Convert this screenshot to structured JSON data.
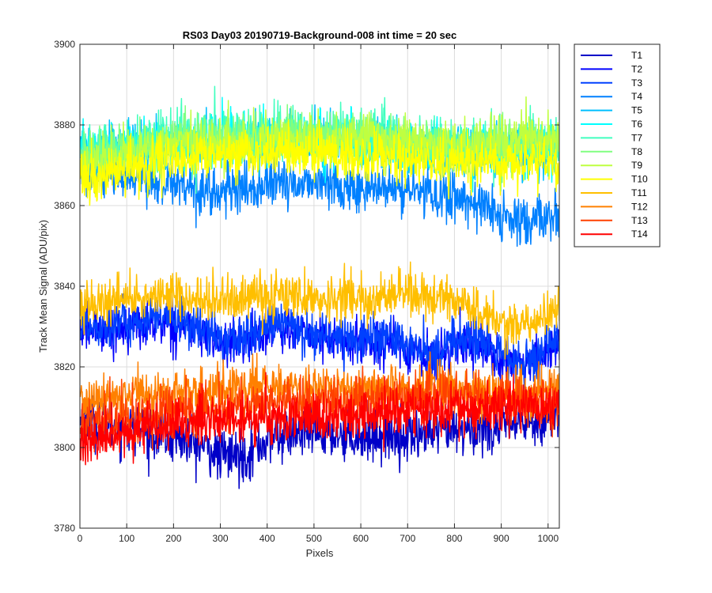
{
  "chart_data": {
    "type": "line",
    "title": "RS03 Day03 20190719-Background-008 int time = 20 sec",
    "xlabel": "Pixels",
    "ylabel": "Track Mean Signal (ADU/pix)",
    "xlim": [
      0,
      1024
    ],
    "ylim": [
      3780,
      3900
    ],
    "xticks": [
      0,
      100,
      200,
      300,
      400,
      500,
      600,
      700,
      800,
      900,
      1000
    ],
    "yticks": [
      3780,
      3800,
      3820,
      3840,
      3860,
      3880,
      3900
    ],
    "grid": true,
    "legend_location": "outside-right-top",
    "x_range": [
      1,
      1024
    ],
    "series": [
      {
        "name": "T1",
        "color": "#0000c8",
        "knots": [
          [
            0,
            3807
          ],
          [
            150,
            3804
          ],
          [
            250,
            3801
          ],
          [
            300,
            3798
          ],
          [
            350,
            3798
          ],
          [
            420,
            3803
          ],
          [
            500,
            3804
          ],
          [
            600,
            3803
          ],
          [
            700,
            3803
          ],
          [
            800,
            3804
          ],
          [
            900,
            3805
          ],
          [
            1024,
            3808
          ]
        ],
        "noise_sd": 3.2
      },
      {
        "name": "T2",
        "color": "#0000ff",
        "knots": [
          [
            0,
            3829
          ],
          [
            100,
            3830
          ],
          [
            200,
            3831
          ],
          [
            250,
            3829
          ],
          [
            300,
            3826
          ],
          [
            350,
            3826
          ],
          [
            420,
            3830
          ],
          [
            500,
            3827
          ],
          [
            600,
            3826
          ],
          [
            650,
            3827
          ],
          [
            700,
            3824
          ],
          [
            760,
            3822
          ],
          [
            800,
            3826
          ],
          [
            850,
            3826
          ],
          [
            900,
            3822
          ],
          [
            950,
            3819
          ],
          [
            1024,
            3826
          ]
        ],
        "noise_sd": 2.8
      },
      {
        "name": "T3",
        "color": "#0040ff",
        "knots": [
          [
            0,
            3830
          ],
          [
            100,
            3831
          ],
          [
            200,
            3832
          ],
          [
            250,
            3830
          ],
          [
            300,
            3827
          ],
          [
            350,
            3827
          ],
          [
            420,
            3831
          ],
          [
            500,
            3828
          ],
          [
            600,
            3827
          ],
          [
            650,
            3828
          ],
          [
            700,
            3825
          ],
          [
            760,
            3823
          ],
          [
            800,
            3827
          ],
          [
            850,
            3827
          ],
          [
            900,
            3823
          ],
          [
            950,
            3820
          ],
          [
            1024,
            3827
          ]
        ],
        "noise_sd": 2.8
      },
      {
        "name": "T4",
        "color": "#0080ff",
        "knots": [
          [
            0,
            3868
          ],
          [
            100,
            3866
          ],
          [
            200,
            3866
          ],
          [
            300,
            3863
          ],
          [
            400,
            3865
          ],
          [
            500,
            3866
          ],
          [
            600,
            3864
          ],
          [
            700,
            3864
          ],
          [
            800,
            3862
          ],
          [
            850,
            3861
          ],
          [
            900,
            3857
          ],
          [
            950,
            3855
          ],
          [
            1000,
            3857
          ],
          [
            1024,
            3859
          ]
        ],
        "noise_sd": 3.0
      },
      {
        "name": "T5",
        "color": "#00bfff",
        "knots": [
          [
            0,
            3874
          ],
          [
            200,
            3874
          ],
          [
            400,
            3876
          ],
          [
            600,
            3875
          ],
          [
            800,
            3873
          ],
          [
            1024,
            3873
          ]
        ],
        "noise_sd": 3.0
      },
      {
        "name": "T6",
        "color": "#00ffff",
        "knots": [
          [
            0,
            3874
          ],
          [
            200,
            3875
          ],
          [
            400,
            3877
          ],
          [
            600,
            3876
          ],
          [
            800,
            3874
          ],
          [
            1024,
            3874
          ]
        ],
        "noise_sd": 3.0
      },
      {
        "name": "T7",
        "color": "#40ffbf",
        "knots": [
          [
            0,
            3874
          ],
          [
            200,
            3876
          ],
          [
            400,
            3878
          ],
          [
            600,
            3878
          ],
          [
            800,
            3875
          ],
          [
            1024,
            3875
          ]
        ],
        "noise_sd": 3.2
      },
      {
        "name": "T8",
        "color": "#80ff80",
        "knots": [
          [
            0,
            3872
          ],
          [
            200,
            3876
          ],
          [
            400,
            3877
          ],
          [
            600,
            3877
          ],
          [
            800,
            3875
          ],
          [
            1024,
            3876
          ]
        ],
        "noise_sd": 3.0
      },
      {
        "name": "T9",
        "color": "#bfff40",
        "knots": [
          [
            0,
            3870
          ],
          [
            200,
            3875
          ],
          [
            400,
            3876
          ],
          [
            600,
            3877
          ],
          [
            800,
            3875
          ],
          [
            1024,
            3877
          ]
        ],
        "noise_sd": 3.0
      },
      {
        "name": "T10",
        "color": "#ffff00",
        "knots": [
          [
            0,
            3866
          ],
          [
            200,
            3872
          ],
          [
            400,
            3873
          ],
          [
            600,
            3872
          ],
          [
            800,
            3871
          ],
          [
            1024,
            3871
          ]
        ],
        "noise_sd": 3.0
      },
      {
        "name": "T11",
        "color": "#ffbf00",
        "knots": [
          [
            0,
            3835
          ],
          [
            200,
            3838
          ],
          [
            300,
            3836
          ],
          [
            400,
            3838
          ],
          [
            500,
            3837
          ],
          [
            600,
            3837
          ],
          [
            700,
            3838
          ],
          [
            800,
            3837
          ],
          [
            870,
            3832
          ],
          [
            920,
            3830
          ],
          [
            1000,
            3833
          ],
          [
            1024,
            3834
          ]
        ],
        "noise_sd": 2.8
      },
      {
        "name": "T12",
        "color": "#ff8000",
        "knots": [
          [
            0,
            3811
          ],
          [
            200,
            3814
          ],
          [
            400,
            3815
          ],
          [
            600,
            3815
          ],
          [
            800,
            3815
          ],
          [
            900,
            3813
          ],
          [
            1024,
            3815
          ]
        ],
        "noise_sd": 3.0
      },
      {
        "name": "T13",
        "color": "#ff4000",
        "knots": [
          [
            0,
            3807
          ],
          [
            200,
            3809
          ],
          [
            400,
            3811
          ],
          [
            600,
            3812
          ],
          [
            800,
            3813
          ],
          [
            1024,
            3811
          ]
        ],
        "noise_sd": 3.0
      },
      {
        "name": "T14",
        "color": "#ff0000",
        "knots": [
          [
            0,
            3802
          ],
          [
            200,
            3806
          ],
          [
            400,
            3807
          ],
          [
            600,
            3808
          ],
          [
            800,
            3810
          ],
          [
            1024,
            3810
          ]
        ],
        "noise_sd": 3.0
      }
    ]
  }
}
